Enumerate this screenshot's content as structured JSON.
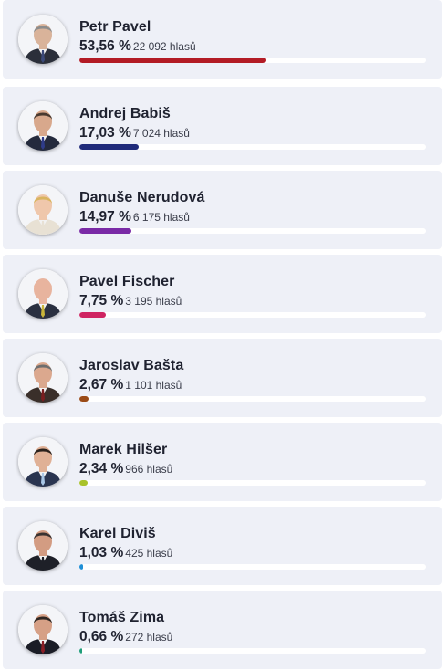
{
  "candidates": [
    {
      "name": "Petr Pavel",
      "percent_label": "53,56 %",
      "votes_label": "22 092 hlasů",
      "share": 53.56,
      "color": "#b31b25",
      "skin": "#d9b39a",
      "hair": "#8c8c8c",
      "suit": "#2b2f3a",
      "tie": "#3b4a7a"
    },
    {
      "name": "Andrej Babiš",
      "percent_label": "17,03 %",
      "votes_label": "7 024 hlasů",
      "share": 17.03,
      "color": "#1f2a7a",
      "skin": "#d8a88c",
      "hair": "#4a3a30",
      "suit": "#242a3d",
      "tie": "#2f3c8a"
    },
    {
      "name": "Danuše Nerudová",
      "percent_label": "14,97 %",
      "votes_label": "6 175 hlasů",
      "share": 14.97,
      "color": "#7a2aa6",
      "skin": "#efc7ab",
      "hair": "#d9b45f",
      "suit": "#e8e1d4",
      "tie": "#e8e1d4"
    },
    {
      "name": "Pavel Fischer",
      "percent_label": "7,75 %",
      "votes_label": "3 195 hlasů",
      "share": 7.75,
      "color": "#cf2462",
      "skin": "#e8b49e",
      "hair": "#e8b49e",
      "suit": "#2a3040",
      "tie": "#c9b53a"
    },
    {
      "name": "Jaroslav Bašta",
      "percent_label": "2,67 %",
      "votes_label": "1 101 hlasů",
      "share": 2.67,
      "color": "#9a4a16",
      "skin": "#dba88e",
      "hair": "#6e6e6e",
      "suit": "#3a2f2a",
      "tie": "#7a1e20"
    },
    {
      "name": "Marek Hilšer",
      "percent_label": "2,34 %",
      "votes_label": "966 hlasů",
      "share": 2.34,
      "color": "#a8c22a",
      "skin": "#e0b196",
      "hair": "#2a211c",
      "suit": "#2a3550",
      "tie": "#a9c7e6"
    },
    {
      "name": "Karel Diviš",
      "percent_label": "1,03 %",
      "votes_label": "425 hlasů",
      "share": 1.03,
      "color": "#1f8fd6",
      "skin": "#d39c82",
      "hair": "#3a3230",
      "suit": "#1e2028",
      "tie": "#1e2028"
    },
    {
      "name": "Tomáš Zima",
      "percent_label": "0,66 %",
      "votes_label": "272 hlasů",
      "share": 0.66,
      "color": "#1f9e7a",
      "skin": "#d6a086",
      "hair": "#2e2622",
      "suit": "#1b1d26",
      "tie": "#8a1e25"
    }
  ]
}
